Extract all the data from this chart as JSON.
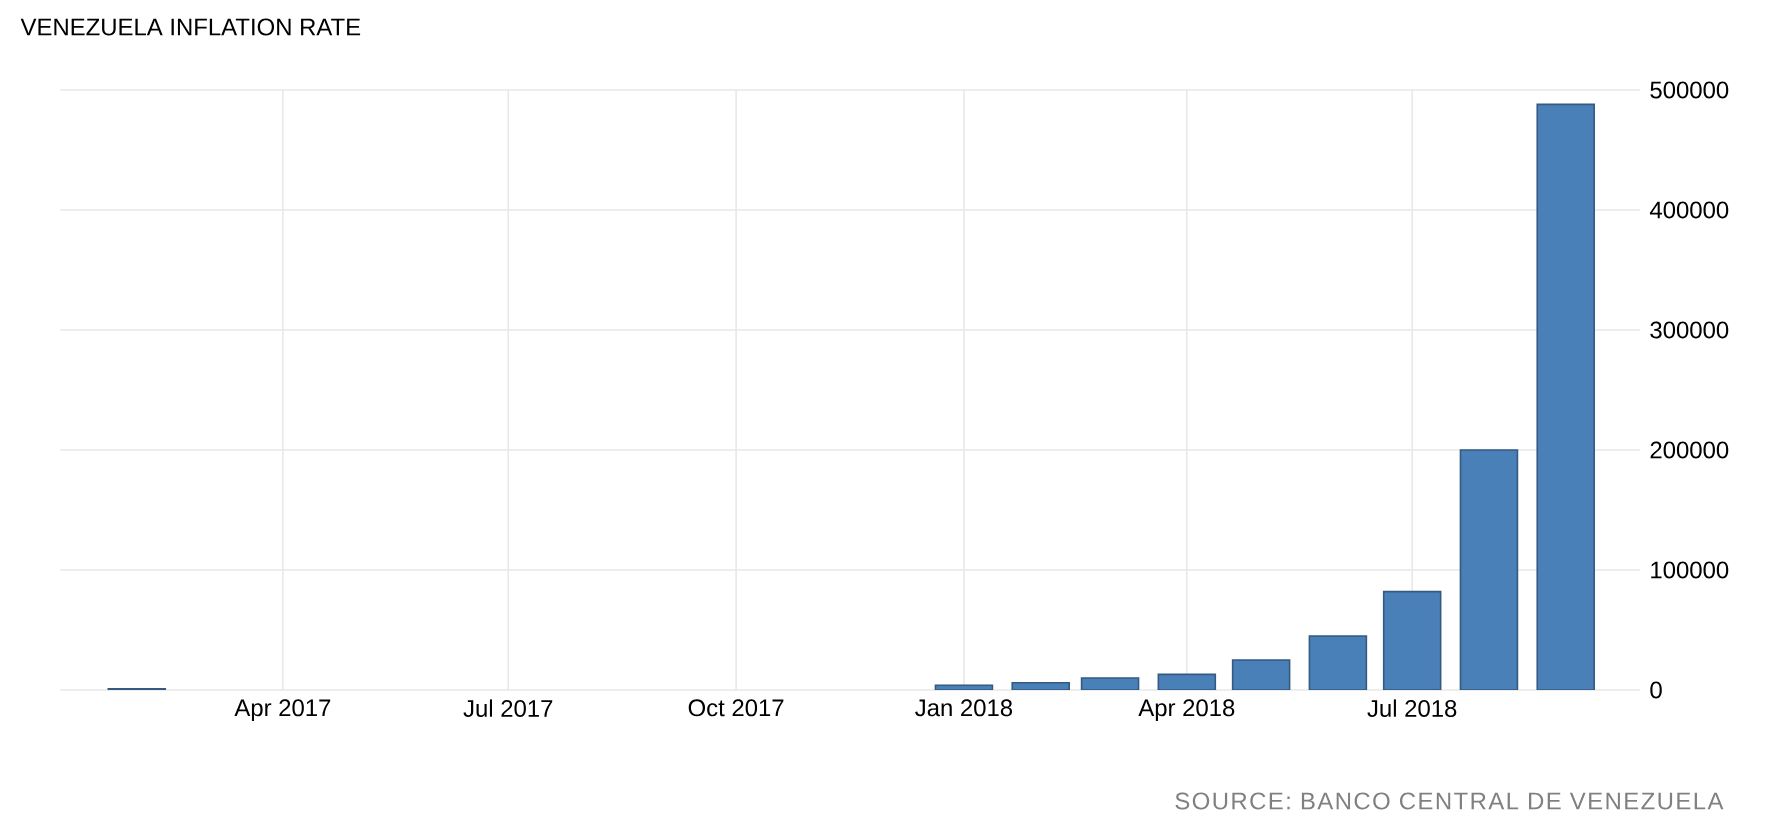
{
  "chart_data": {
    "type": "bar",
    "title": "VENEZUELA INFLATION RATE",
    "x": [
      "2017-02",
      "2018-01",
      "2018-02",
      "2018-03",
      "2018-04",
      "2018-05",
      "2018-06",
      "2018-07",
      "2018-08",
      "2018-09"
    ],
    "values": [
      1000,
      4000,
      6000,
      10000,
      13000,
      25000,
      45000,
      82000,
      200000,
      488000
    ],
    "color": "#4a80b8",
    "xlim": [
      "2017-01",
      "2018-10"
    ],
    "xticks": [
      {
        "value": "2017-04",
        "label": "Apr 2017"
      },
      {
        "value": "2017-07",
        "label": "Jul 2017"
      },
      {
        "value": "2017-10",
        "label": "Oct 2017"
      },
      {
        "value": "2018-01",
        "label": "Jan 2018"
      },
      {
        "value": "2018-04",
        "label": "Apr 2018"
      },
      {
        "value": "2018-07",
        "label": "Jul 2018"
      }
    ],
    "ylim": [
      0,
      500000
    ],
    "yticks": [
      0,
      100000,
      200000,
      300000,
      400000,
      500000
    ],
    "grid": true,
    "annotations": [
      "SOURCE: BANCO CENTRAL DE VENEZUELA"
    ]
  }
}
